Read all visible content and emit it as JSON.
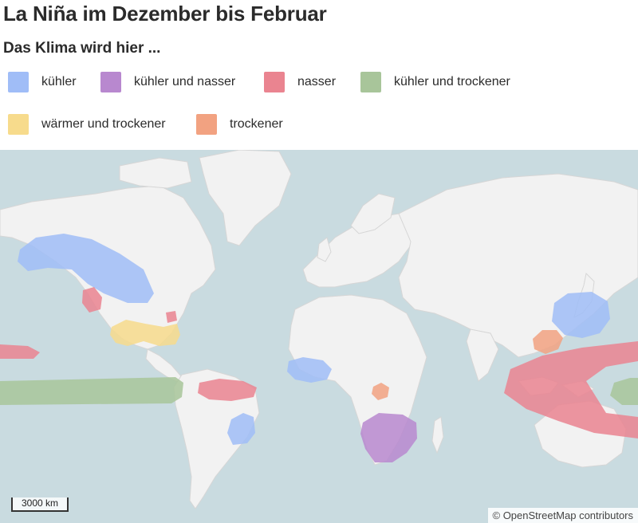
{
  "title": "La Niña im Dezember bis Februar",
  "subtitle": "Das Klima wird hier ...",
  "legend": [
    {
      "label": "kühler",
      "color": "#a0bdf7"
    },
    {
      "label": "kühler und nasser",
      "color": "#b888cf"
    },
    {
      "label": "nasser",
      "color": "#ea8490"
    },
    {
      "label": "kühler und trockener",
      "color": "#a8c59a"
    },
    {
      "label": "wärmer und trockener",
      "color": "#f7db8c"
    },
    {
      "label": "trockener",
      "color": "#f2a281"
    }
  ],
  "map": {
    "water_color": "#c9dbe0",
    "land_color": "#f2f2f2",
    "scale_label": "3000 km",
    "attribution": "© OpenStreetMap contributors"
  }
}
